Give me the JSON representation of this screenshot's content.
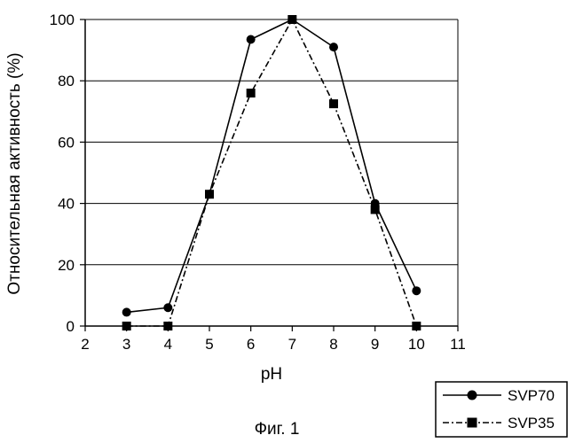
{
  "chart_data": {
    "type": "line",
    "title": "",
    "caption": "Фиг. 1",
    "xlabel": "pH",
    "ylabel": "Относительная активность (%)",
    "xlim": [
      2,
      11
    ],
    "ylim": [
      0,
      100
    ],
    "xticks": [
      2,
      3,
      4,
      5,
      6,
      7,
      8,
      9,
      10,
      11
    ],
    "yticks": [
      0,
      20,
      40,
      60,
      80,
      100
    ],
    "grid": "horizontal",
    "legend_position": "bottom-right",
    "series": [
      {
        "name": "SVP70",
        "marker": "circle",
        "line_style": "solid",
        "color": "#000000",
        "x": [
          3,
          4,
          5,
          6,
          7,
          8,
          9,
          10
        ],
        "y": [
          4.5,
          6,
          43,
          93.5,
          100,
          91,
          40,
          11.5
        ]
      },
      {
        "name": "SVP35",
        "marker": "square",
        "line_style": "dash-dot",
        "color": "#000000",
        "x": [
          3,
          4,
          5,
          6,
          7,
          8,
          9,
          10
        ],
        "y": [
          0,
          0,
          43,
          76,
          100,
          72.5,
          38,
          0
        ]
      }
    ]
  }
}
